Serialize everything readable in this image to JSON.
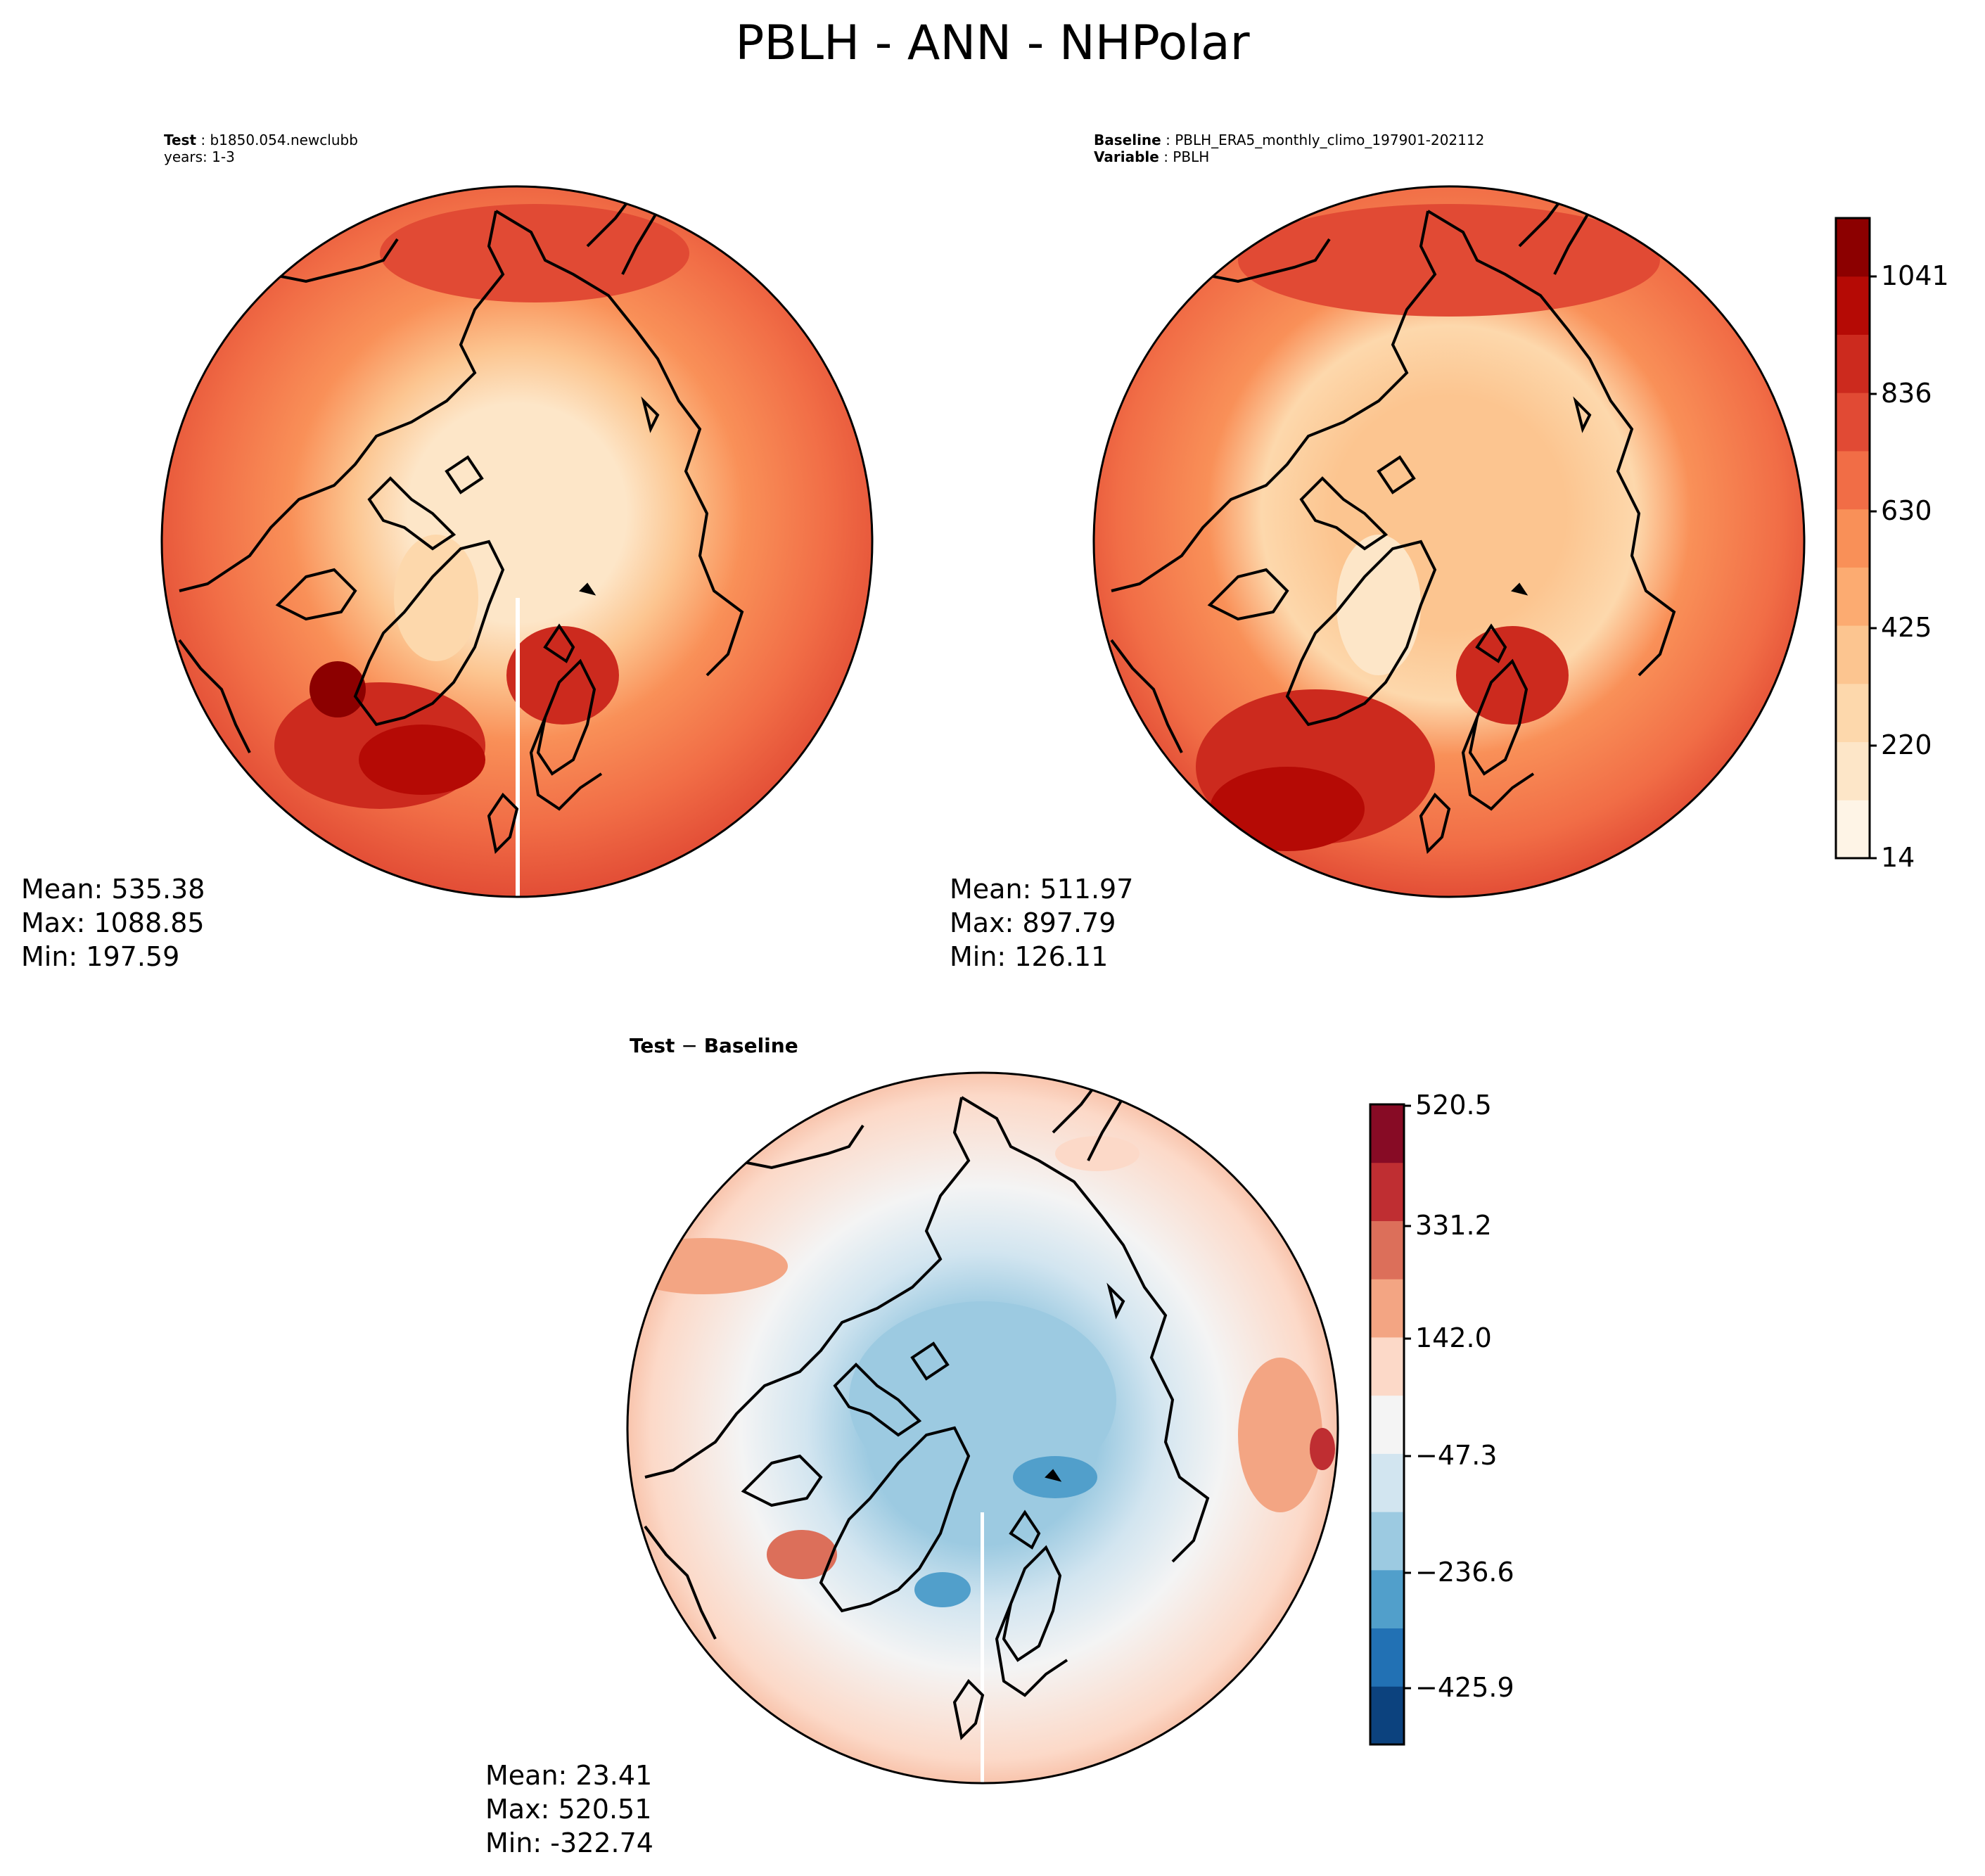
{
  "figure": {
    "title": "PBLH - ANN - NHPolar"
  },
  "colors": {
    "orrd": [
      "#fef4e6",
      "#fde6c8",
      "#fdd8ac",
      "#fcc590",
      "#fcab71",
      "#f99058",
      "#f16d46",
      "#e14a34",
      "#cc2a1e",
      "#b50a05",
      "#8c0000"
    ],
    "rdbu": [
      "#0c427e",
      "#2271b4",
      "#519fcb",
      "#9ccae1",
      "#d2e5f0",
      "#f4f4f4",
      "#fcd9c8",
      "#f3a583",
      "#dc6f5a",
      "#bf2e32",
      "#870b25"
    ],
    "coastline": "#000000"
  },
  "panels": {
    "test": {
      "label_key": "Test",
      "label_value": "b1850.054.newclubb",
      "label_line2": "years: 1-3",
      "stats": {
        "mean": "Mean: 535.38",
        "max": "Max: 1088.85",
        "min": "Min: 197.59"
      }
    },
    "baseline": {
      "label_key": "Baseline",
      "label_value": "PBLH_ERA5_monthly_climo_197901-202112",
      "label_key2": "Variable",
      "label_value2": "PBLH",
      "stats": {
        "mean": "Mean: 511.97",
        "max": "Max: 897.79",
        "min": "Min: 126.11"
      }
    },
    "diff": {
      "title_left": "Test",
      "title_sep": " − ",
      "title_right": "Baseline",
      "stats": {
        "mean": "Mean: 23.41",
        "max": "Max: 520.51",
        "min": "Min: -322.74"
      }
    }
  },
  "colorbars": {
    "main": {
      "ticks": [
        "1041",
        "836",
        "630",
        "425",
        "220",
        "14"
      ]
    },
    "diff": {
      "ticks": [
        "520.5",
        "331.2",
        "142.0",
        "−47.3",
        "−236.6",
        "−425.9"
      ]
    }
  },
  "chart_data": [
    {
      "type": "heatmap",
      "title": "Test: b1850.054.newclubb",
      "subtitle": "years: 1-3",
      "projection": "north polar stereographic",
      "colormap": "OrRd",
      "mean": 535.38,
      "max": 1088.85,
      "min": 197.59,
      "colorbar_ticks": [
        14,
        220,
        425,
        630,
        836,
        1041
      ],
      "colorbar_range": [
        14,
        1140
      ],
      "features": [
        {
          "region": "central Arctic Ocean",
          "value": 220
        },
        {
          "region": "Greenland",
          "value": 350
        },
        {
          "region": "outer mid-latitudes",
          "value": 700
        },
        {
          "region": "North Atlantic",
          "value": 1000
        },
        {
          "region": "Barents / Norwegian Sea",
          "value": 950
        }
      ]
    },
    {
      "type": "heatmap",
      "title": "Baseline: PBLH_ERA5_monthly_climo_197901-202112",
      "subtitle": "Variable: PBLH",
      "projection": "north polar stereographic",
      "colormap": "OrRd",
      "mean": 511.97,
      "max": 897.79,
      "min": 126.11,
      "colorbar_ticks": [
        14,
        220,
        425,
        630,
        836,
        1041
      ],
      "colorbar_range": [
        14,
        1140
      ],
      "features": [
        {
          "region": "central Arctic Ocean",
          "value": 390
        },
        {
          "region": "Greenland",
          "value": 270
        },
        {
          "region": "outer mid-latitudes",
          "value": 650
        },
        {
          "region": "North Atlantic",
          "value": 900
        },
        {
          "region": "Barents / Norwegian Sea",
          "value": 850
        }
      ]
    },
    {
      "type": "heatmap",
      "title": "Test − Baseline",
      "projection": "north polar stereographic",
      "colormap": "RdBu_r",
      "mean": 23.41,
      "max": 520.51,
      "min": -322.74,
      "colorbar_ticks": [
        -425.9,
        -236.6,
        -47.3,
        142.0,
        331.2,
        520.5
      ],
      "colorbar_range": [
        -520.5,
        520.5
      ],
      "features": [
        {
          "region": "central Arctic Ocean",
          "value": -150
        },
        {
          "region": "Greenland",
          "value": 60
        },
        {
          "region": "Labrador Sea",
          "value": 230
        },
        {
          "region": "Barents Sea",
          "value": -250
        },
        {
          "region": "eastern Asia / Himalaya",
          "value": 300
        }
      ]
    }
  ]
}
